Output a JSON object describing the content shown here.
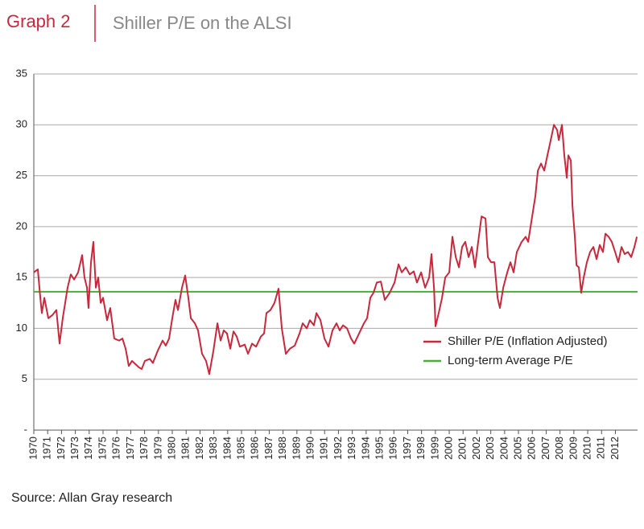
{
  "chart_data": {
    "type": "line",
    "label": "Graph 2",
    "title": "Shiller P/E on the ALSI",
    "source": "Source: Allan Gray research",
    "x": [
      1970.0,
      1970.29,
      1970.47,
      1970.58,
      1970.76,
      1971.05,
      1971.34,
      1971.63,
      1971.86,
      1972.09,
      1972.44,
      1972.67,
      1972.91,
      1973.2,
      1973.49,
      1973.66,
      1973.84,
      1973.95,
      1974.13,
      1974.3,
      1974.48,
      1974.65,
      1974.83,
      1975.0,
      1975.29,
      1975.52,
      1975.81,
      1976.16,
      1976.4,
      1976.63,
      1976.86,
      1977.09,
      1977.33,
      1977.56,
      1977.79,
      1978.02,
      1978.37,
      1978.6,
      1978.95,
      1979.3,
      1979.53,
      1979.77,
      1980.0,
      1980.23,
      1980.41,
      1980.7,
      1980.93,
      1981.16,
      1981.34,
      1981.63,
      1981.86,
      1982.15,
      1982.44,
      1982.67,
      1982.97,
      1983.26,
      1983.49,
      1983.72,
      1983.95,
      1984.19,
      1984.42,
      1984.65,
      1984.88,
      1985.23,
      1985.47,
      1985.76,
      1986.05,
      1986.4,
      1986.63,
      1986.8,
      1987.09,
      1987.38,
      1987.67,
      1987.91,
      1988.2,
      1988.49,
      1988.84,
      1989.19,
      1989.42,
      1989.71,
      1989.94,
      1990.23,
      1990.41,
      1990.7,
      1990.99,
      1991.28,
      1991.57,
      1991.86,
      1992.09,
      1992.33,
      1992.62,
      1992.91,
      1993.14,
      1993.49,
      1993.84,
      1994.07,
      1994.3,
      1994.53,
      1994.77,
      1995.06,
      1995.35,
      1995.7,
      1996.05,
      1996.34,
      1996.57,
      1996.86,
      1997.15,
      1997.44,
      1997.67,
      1997.97,
      1998.26,
      1998.55,
      1998.72,
      1998.9,
      1999.01,
      1999.24,
      1999.48,
      1999.71,
      2000.0,
      2000.23,
      2000.47,
      2000.7,
      2000.93,
      2001.16,
      2001.4,
      2001.63,
      2001.86,
      2002.09,
      2002.33,
      2002.62,
      2002.79,
      2003.02,
      2003.26,
      2003.49,
      2003.66,
      2003.9,
      2004.19,
      2004.42,
      2004.65,
      2004.88,
      2005.23,
      2005.52,
      2005.7,
      2005.99,
      2006.22,
      2006.4,
      2006.63,
      2006.86,
      2007.09,
      2007.33,
      2007.56,
      2007.79,
      2007.91,
      2008.14,
      2008.31,
      2008.49,
      2008.6,
      2008.78,
      2008.9,
      2009.07,
      2009.19,
      2009.36,
      2009.53,
      2009.71,
      2009.94,
      2010.17,
      2010.41,
      2010.64,
      2010.87,
      2011.1,
      2011.28,
      2011.51,
      2011.74,
      2011.98,
      2012.21,
      2012.44,
      2012.67,
      2012.91,
      2013.14,
      2013.37,
      2013.55
    ],
    "series": [
      {
        "name": "Shiller P/E (Inflation Adjusted)",
        "color": "#c8283c",
        "values": [
          15.5,
          15.8,
          13,
          11.5,
          13,
          11,
          11.3,
          11.8,
          8.5,
          11,
          14,
          15.3,
          14.8,
          15.5,
          17.2,
          15,
          14,
          12,
          16.5,
          18.5,
          14,
          15,
          12.5,
          13,
          10.8,
          12,
          9,
          8.8,
          9,
          8,
          6.3,
          6.8,
          6.5,
          6.2,
          6.0,
          6.8,
          7,
          6.6,
          7.8,
          8.8,
          8.3,
          9,
          11,
          12.8,
          11.8,
          14,
          15.2,
          13,
          11,
          10.5,
          9.8,
          7.5,
          6.8,
          5.5,
          7.8,
          10.5,
          8.8,
          9.8,
          9.5,
          8,
          9.7,
          9.2,
          8.2,
          8.4,
          7.5,
          8.5,
          8.2,
          9.2,
          9.5,
          11.5,
          11.8,
          12.5,
          13.9,
          10,
          7.5,
          8,
          8.3,
          9.5,
          10.5,
          10,
          10.8,
          10.3,
          11.5,
          10.8,
          9,
          8.2,
          9.8,
          10.5,
          9.8,
          10.3,
          10,
          9,
          8.5,
          9.5,
          10.5,
          11,
          13,
          13.5,
          14.5,
          14.6,
          12.8,
          13.5,
          14.5,
          16.3,
          15.5,
          16,
          15.3,
          15.6,
          14.5,
          15.5,
          14,
          15,
          17.3,
          14,
          10.2,
          11.5,
          13,
          15,
          15.5,
          19,
          17,
          16,
          18,
          18.5,
          17,
          18,
          16,
          18.5,
          21,
          20.8,
          17,
          16.5,
          16.5,
          13,
          12,
          14,
          15.5,
          16.5,
          15.5,
          17.5,
          18.5,
          19,
          18.5,
          21,
          23,
          25.5,
          26.2,
          25.5,
          27,
          28.5,
          30,
          29.5,
          28.5,
          30,
          27,
          24.8,
          27,
          26.5,
          22,
          19,
          16.2,
          16,
          13.5,
          15,
          16.5,
          17.5,
          18,
          16.8,
          18.2,
          17.5,
          19.3,
          19,
          18.5,
          17.5,
          16.5,
          18,
          17.3,
          17.5,
          17,
          18,
          19
        ]
      }
    ],
    "reference_lines": [
      {
        "name": "Long-term Average P/E",
        "color": "#4aad3f",
        "value": 13.6
      }
    ],
    "xlim": [
      1970,
      2013.6
    ],
    "xticks": [
      1970,
      1971,
      1972,
      1973,
      1974,
      1975,
      1976,
      1977,
      1978,
      1979,
      1980,
      1981,
      1982,
      1983,
      1984,
      1985,
      1986,
      1987,
      1988,
      1989,
      1990,
      1991,
      1992,
      1993,
      1994,
      1995,
      1996,
      1997,
      1998,
      1999,
      2000,
      2001,
      2002,
      2003,
      2004,
      2005,
      2006,
      2007,
      2008,
      2009,
      2010,
      2011,
      2012
    ],
    "ylim": [
      0,
      35
    ],
    "yticks": [
      {
        "value": 0,
        "label": "-"
      },
      5,
      10,
      15,
      20,
      25,
      30,
      35
    ],
    "grid": true
  }
}
